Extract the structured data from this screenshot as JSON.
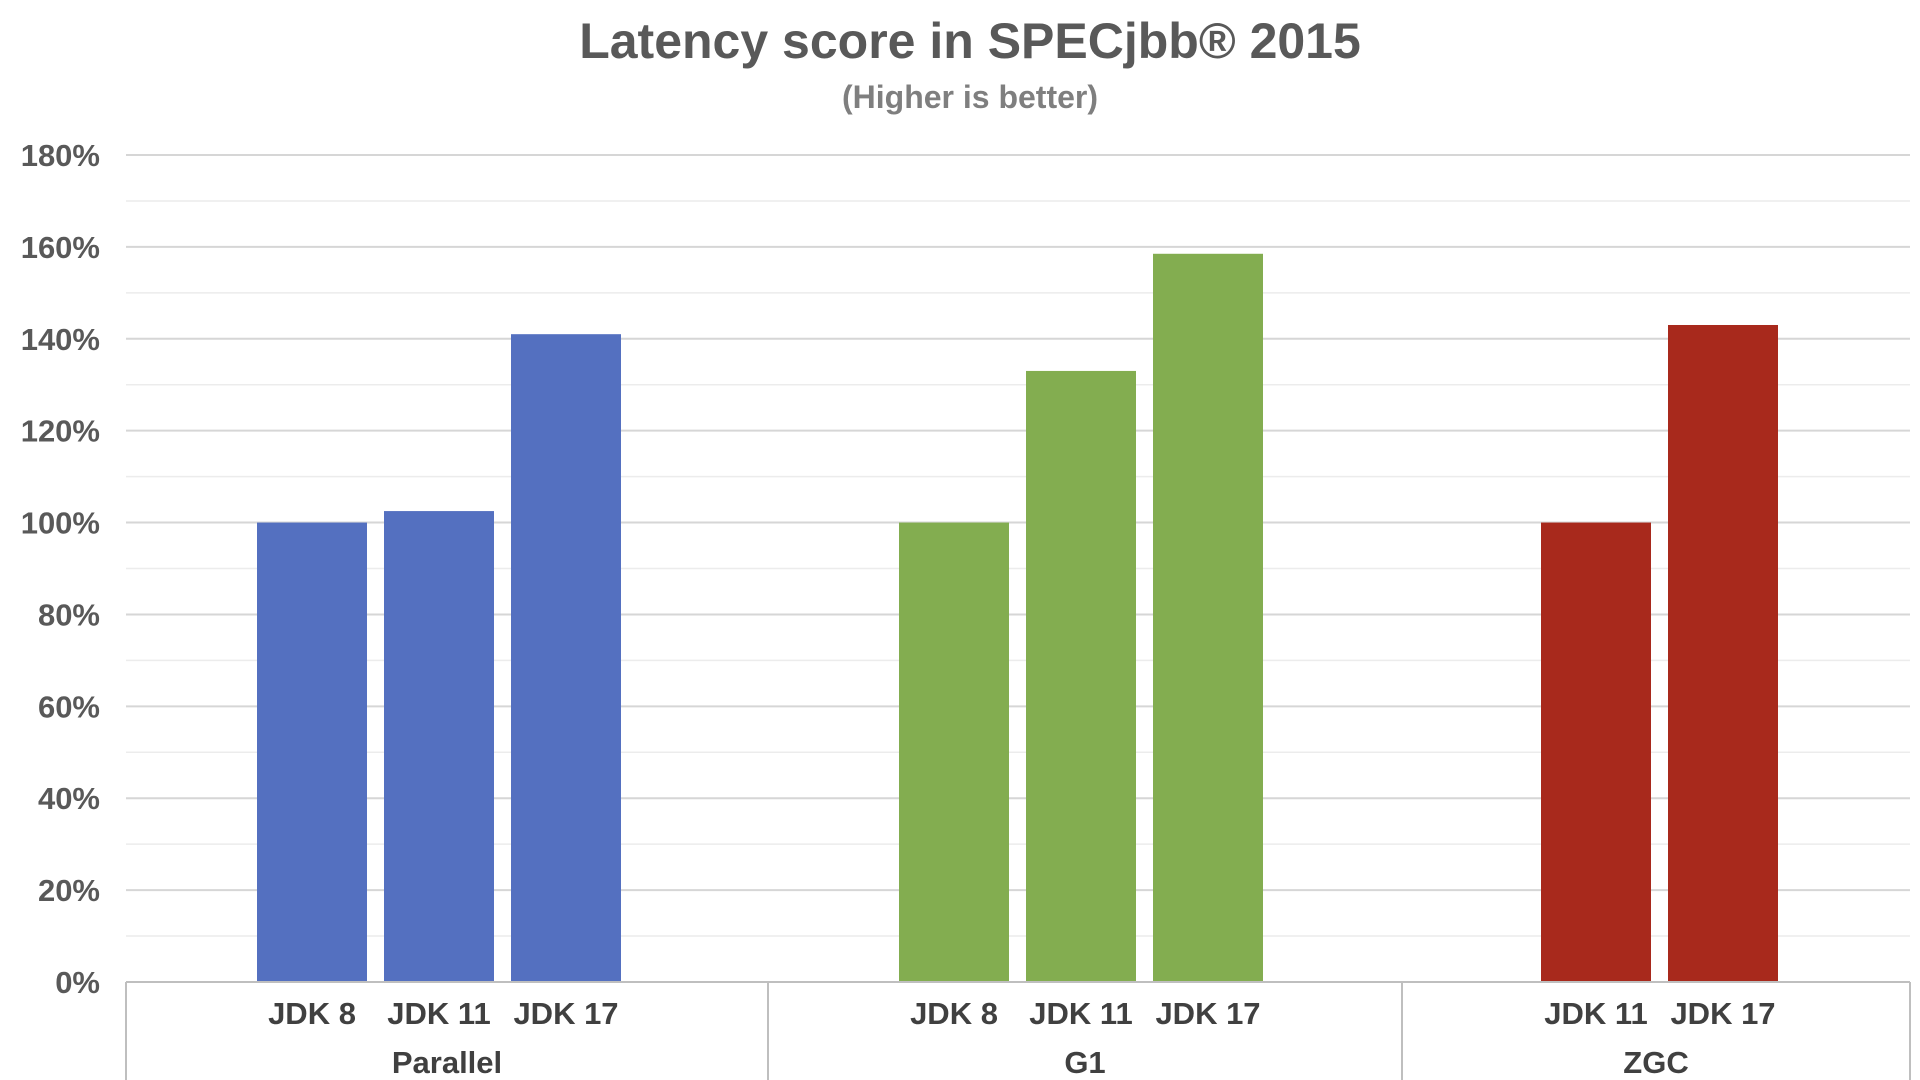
{
  "chart_data": {
    "type": "bar",
    "title": "Latency score in SPECjbb® 2015",
    "subtitle": "(Higher is better)",
    "xlabel": "",
    "ylabel": "",
    "ylim": [
      0,
      180
    ],
    "y_ticks": [
      "0%",
      "20%",
      "40%",
      "60%",
      "80%",
      "100%",
      "120%",
      "140%",
      "160%",
      "180%"
    ],
    "grid": true,
    "legend": "none",
    "groups": [
      {
        "name": "Parallel",
        "color": "#5470c0",
        "categories": [
          "JDK 8",
          "JDK 11",
          "JDK 17"
        ],
        "values": [
          100,
          102.5,
          141
        ]
      },
      {
        "name": "G1",
        "color": "#83ad50",
        "categories": [
          "JDK 8",
          "JDK 11",
          "JDK 17"
        ],
        "values": [
          100,
          133,
          158.5
        ]
      },
      {
        "name": "ZGC",
        "color": "#a8291c",
        "categories": [
          "JDK 11",
          "JDK 17"
        ],
        "values": [
          100,
          143
        ]
      }
    ]
  }
}
